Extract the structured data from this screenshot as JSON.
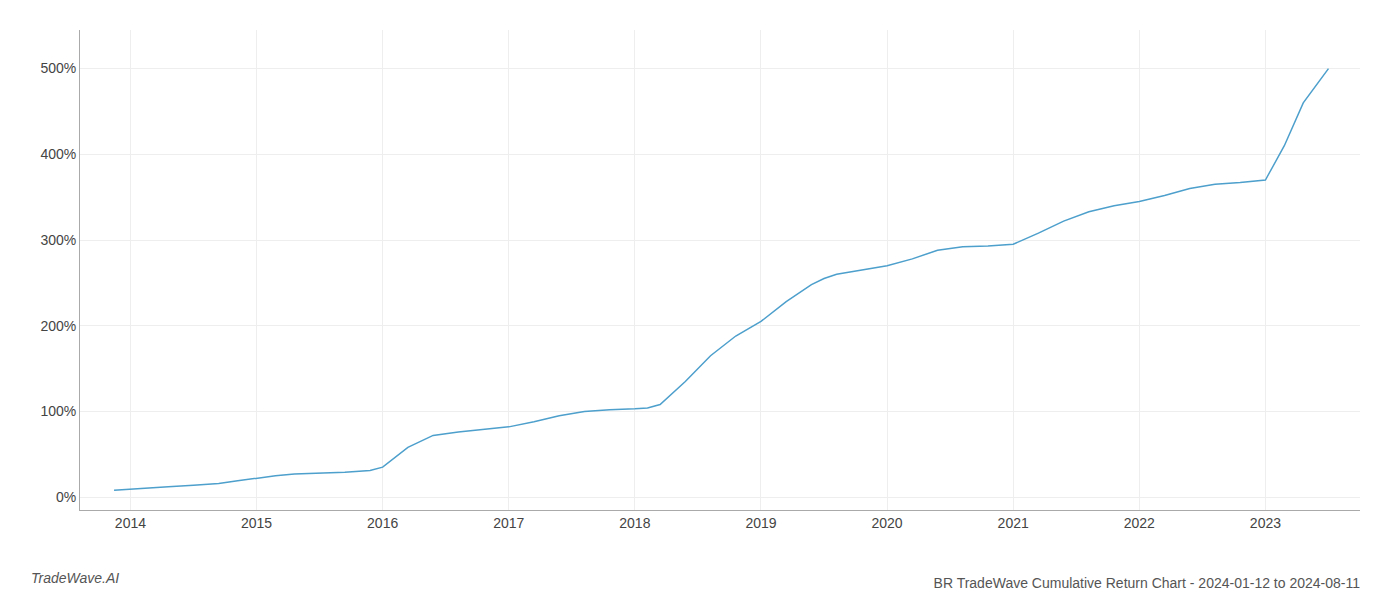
{
  "chart_data": {
    "type": "line",
    "title": "BR TradeWave Cumulative Return Chart - 2024-01-12 to 2024-08-11",
    "annotations": [
      "TradeWave.AI"
    ],
    "x": [
      2013.87,
      2014.0,
      2014.15,
      2014.3,
      2014.5,
      2014.7,
      2014.85,
      2015.0,
      2015.15,
      2015.3,
      2015.5,
      2015.7,
      2015.9,
      2016.0,
      2016.2,
      2016.4,
      2016.6,
      2016.8,
      2017.0,
      2017.2,
      2017.4,
      2017.6,
      2017.8,
      2018.0,
      2018.1,
      2018.2,
      2018.4,
      2018.6,
      2018.8,
      2019.0,
      2019.2,
      2019.4,
      2019.5,
      2019.6,
      2019.8,
      2020.0,
      2020.2,
      2020.4,
      2020.6,
      2020.8,
      2021.0,
      2021.2,
      2021.4,
      2021.6,
      2021.8,
      2022.0,
      2022.2,
      2022.4,
      2022.6,
      2022.8,
      2023.0,
      2023.15,
      2023.3,
      2023.5
    ],
    "values": [
      8,
      9,
      10,
      12,
      14,
      16,
      19,
      22,
      25,
      27,
      28,
      29,
      31,
      35,
      58,
      72,
      76,
      79,
      82,
      88,
      95,
      100,
      102,
      103,
      104,
      108,
      135,
      165,
      188,
      205,
      228,
      248,
      255,
      260,
      265,
      270,
      278,
      288,
      292,
      293,
      295,
      308,
      322,
      333,
      340,
      345,
      352,
      360,
      365,
      367,
      370,
      410,
      460,
      500
    ],
    "color": "#4d9fcc",
    "xlim": [
      2013.6,
      2023.75
    ],
    "xticks": [
      2014,
      2015,
      2016,
      2017,
      2018,
      2019,
      2020,
      2021,
      2022,
      2023
    ],
    "ylim": [
      -15,
      545
    ],
    "yticks": [
      {
        "value": 0,
        "label": "0%"
      },
      {
        "value": 100,
        "label": "100%"
      },
      {
        "value": 200,
        "label": "200%"
      },
      {
        "value": 300,
        "label": "300%"
      },
      {
        "value": 400,
        "label": "400%"
      },
      {
        "value": 500,
        "label": "500%"
      }
    ],
    "grid": true
  }
}
